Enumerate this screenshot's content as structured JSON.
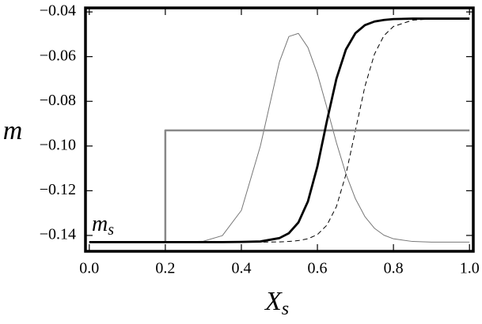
{
  "chart_data": {
    "type": "line",
    "ylabel": "m",
    "xlabel": {
      "main": "X",
      "sub": "s"
    },
    "annotation": {
      "main": "m",
      "sub": "s"
    },
    "xlim": [
      -0.01,
      1.01
    ],
    "ylim": [
      -0.1471,
      -0.0382
    ],
    "xticks": [
      {
        "value": 0,
        "label": "0.0"
      },
      0.2,
      0.4,
      0.6,
      0.8,
      {
        "value": 1,
        "label": "1.0"
      }
    ],
    "yticks": [
      {
        "value": -0.04,
        "label": "−0.04"
      },
      {
        "value": -0.06,
        "label": "−0.06"
      },
      {
        "value": -0.08,
        "label": "−0.08"
      },
      {
        "value": -0.1,
        "label": "−0.10"
      },
      {
        "value": -0.12,
        "label": "−0.12"
      },
      {
        "value": -0.14,
        "label": "−0.14"
      }
    ],
    "series": [
      {
        "color": "#777777",
        "width": 1,
        "dash": false,
        "x": [
          0,
          0.1,
          0.2,
          0.3,
          0.35,
          0.4,
          0.45,
          0.5,
          0.525,
          0.55,
          0.575,
          0.6,
          0.625,
          0.65,
          0.675,
          0.7,
          0.725,
          0.75,
          0.775,
          0.8,
          0.85,
          0.9,
          1.0
        ],
        "values": [
          -0.143,
          -0.143,
          -0.143,
          -0.1426,
          -0.1401,
          -0.1288,
          -0.1,
          -0.0624,
          -0.051,
          -0.0496,
          -0.0559,
          -0.0677,
          -0.0828,
          -0.0985,
          -0.1125,
          -0.1236,
          -0.1316,
          -0.1368,
          -0.1399,
          -0.1415,
          -0.1427,
          -0.143,
          -0.143
        ]
      },
      {
        "color": "#000000",
        "width": 1,
        "dash": true,
        "x": [
          0,
          0.1,
          0.2,
          0.3,
          0.35,
          0.4,
          0.45,
          0.5,
          0.525,
          0.55,
          0.575,
          0.6,
          0.625,
          0.65,
          0.675,
          0.7,
          0.725,
          0.75,
          0.775,
          0.8,
          0.85,
          0.9,
          1.0
        ],
        "values": [
          -0.143,
          -0.143,
          -0.143,
          -0.143,
          -0.143,
          -0.143,
          -0.143,
          -0.1429,
          -0.1427,
          -0.1423,
          -0.1415,
          -0.1396,
          -0.1354,
          -0.1271,
          -0.1127,
          -0.093,
          -0.0733,
          -0.0589,
          -0.0506,
          -0.0465,
          -0.0437,
          -0.0431,
          -0.043
        ]
      },
      {
        "color": "#888888",
        "width": 2.5,
        "dash": false,
        "x": [
          0,
          0.2,
          0.2,
          1.0
        ],
        "values": [
          -0.143,
          -0.143,
          -0.093,
          -0.093
        ]
      },
      {
        "color": "#000000",
        "width": 2.8,
        "dash": false,
        "x": [
          0,
          0.1,
          0.2,
          0.3,
          0.35,
          0.4,
          0.45,
          0.5,
          0.525,
          0.55,
          0.575,
          0.6,
          0.625,
          0.65,
          0.675,
          0.7,
          0.725,
          0.75,
          0.775,
          0.8,
          0.85,
          0.9,
          1.0
        ],
        "values": [
          -0.143,
          -0.143,
          -0.143,
          -0.143,
          -0.143,
          -0.1429,
          -0.1427,
          -0.1412,
          -0.139,
          -0.1342,
          -0.1248,
          -0.1091,
          -0.0888,
          -0.0699,
          -0.0568,
          -0.0495,
          -0.0459,
          -0.0443,
          -0.0436,
          -0.0432,
          -0.043,
          -0.043,
          -0.043
        ]
      }
    ]
  }
}
